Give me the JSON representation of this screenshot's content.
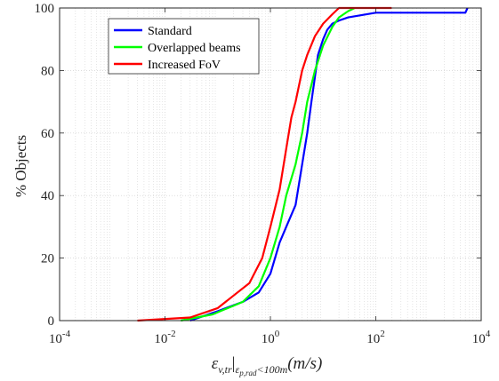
{
  "chart_data": {
    "type": "line",
    "xscale": "log",
    "xlim": [
      0.0001,
      10000
    ],
    "ylim": [
      0,
      100
    ],
    "grid": true,
    "legend_position": "top-left",
    "ylabel": "% Objects",
    "xlabel_base": "ε",
    "xlabel_sub": "v,tr",
    "xlabel_bar": "|",
    "xlabel_sub2": "ε",
    "xlabel_sub2_sub": "p,rad",
    "xlabel_sub_tail": "<100m",
    "xlabel_tail": "(m/s)",
    "xticks": [
      {
        "value": 0.0001,
        "base": "10",
        "exp": "-4"
      },
      {
        "value": 0.01,
        "base": "10",
        "exp": "-2"
      },
      {
        "value": 1,
        "base": "10",
        "exp": "0"
      },
      {
        "value": 100,
        "base": "10",
        "exp": "2"
      },
      {
        "value": 10000,
        "base": "10",
        "exp": "4"
      }
    ],
    "yticks": [
      {
        "value": 0,
        "label": "0"
      },
      {
        "value": 20,
        "label": "20"
      },
      {
        "value": 40,
        "label": "40"
      },
      {
        "value": 60,
        "label": "60"
      },
      {
        "value": 80,
        "label": "80"
      },
      {
        "value": 100,
        "label": "100"
      }
    ],
    "series": [
      {
        "name": "Standard",
        "color": "#0000ff",
        "x": [
          0.03,
          0.1,
          0.3,
          0.6,
          1.0,
          1.5,
          2.0,
          3.0,
          4.0,
          5.0,
          6.0,
          7.0,
          8.0,
          10.0,
          12.0,
          15.0,
          20.0,
          30.0,
          100.0,
          5000.0,
          5500.0
        ],
        "y": [
          0,
          3,
          6,
          9,
          15,
          25,
          30,
          37,
          50,
          60,
          70,
          78,
          85,
          90,
          93,
          95,
          96,
          97,
          98.5,
          98.5,
          100
        ]
      },
      {
        "name": "Overlapped beams",
        "color": "#00ff00",
        "x": [
          0.02,
          0.08,
          0.3,
          0.6,
          1.0,
          1.5,
          2.0,
          3.0,
          4.0,
          5.0,
          7.0,
          10.0,
          15.0,
          20.0,
          30.0,
          40.0
        ],
        "y": [
          0,
          2,
          6,
          11,
          20,
          30,
          40,
          50,
          60,
          70,
          80,
          88,
          94,
          97,
          99,
          100
        ]
      },
      {
        "name": "Increased FoV",
        "color": "#ff0000",
        "x": [
          0.003,
          0.03,
          0.1,
          0.2,
          0.4,
          0.7,
          1.0,
          1.5,
          2.0,
          2.5,
          3.0,
          4.0,
          5.0,
          7.0,
          10.0,
          15.0,
          20.0,
          50.0,
          200.0
        ],
        "y": [
          0,
          1,
          4,
          8,
          12,
          20,
          30,
          42,
          55,
          65,
          70,
          80,
          85,
          91,
          95,
          98,
          100,
          100,
          100
        ]
      }
    ]
  }
}
